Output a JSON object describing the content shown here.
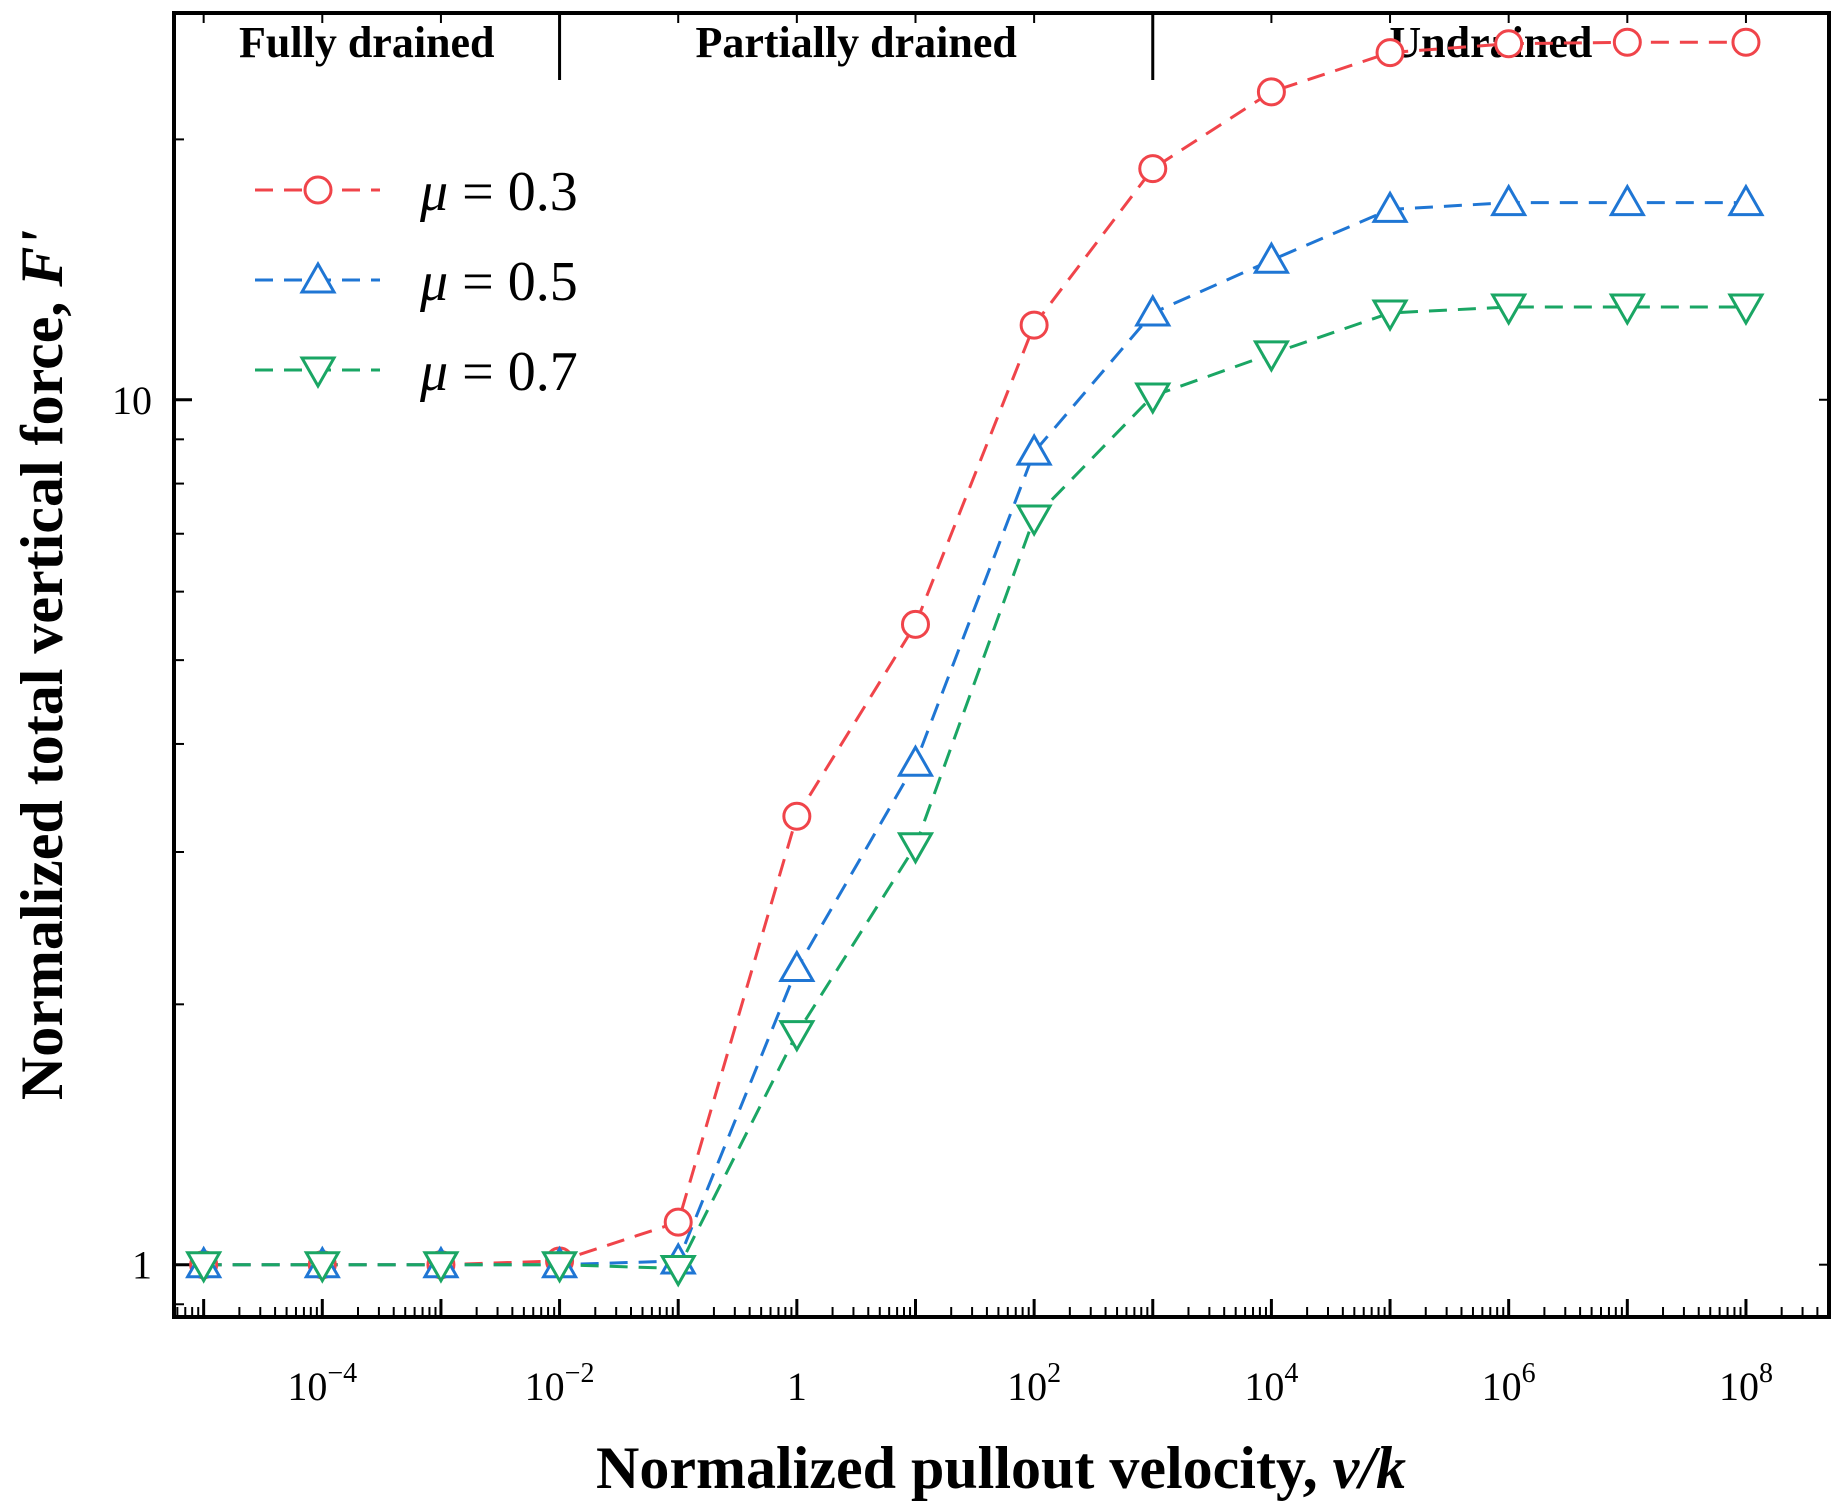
{
  "chart_data": {
    "type": "line",
    "title": "",
    "xlabel": "Normalized pullout velocity, ",
    "xlabel_italic": "v/k",
    "ylabel": "Normalized total vertical force, ",
    "ylabel_italic": "F'",
    "xscale": "log10",
    "yscale": "log10",
    "xlim_exponent": [
      -5.25,
      8.7
    ],
    "ylim": [
      0.87,
      28.0
    ],
    "x_exponents": [
      -5,
      -4,
      -3,
      -2,
      -1,
      0,
      1,
      2,
      3,
      4,
      5,
      6,
      7,
      8
    ],
    "x_tick_labels": [
      {
        "exp": -4,
        "base": "10",
        "sup": "−4"
      },
      {
        "exp": -2,
        "base": "10",
        "sup": "−2"
      },
      {
        "exp": 0,
        "base": "1",
        "sup": ""
      },
      {
        "exp": 2,
        "base": "10",
        "sup": "2"
      },
      {
        "exp": 4,
        "base": "10",
        "sup": "4"
      },
      {
        "exp": 6,
        "base": "10",
        "sup": "6"
      },
      {
        "exp": 8,
        "base": "10",
        "sup": "8"
      }
    ],
    "y_tick_labels": [
      {
        "value": 1,
        "label": "1"
      },
      {
        "value": 10,
        "label": "10"
      }
    ],
    "regions": [
      {
        "label": "Fully drained",
        "from_exp": -5.25,
        "to_exp": -2
      },
      {
        "label": "Partially drained",
        "from_exp": -2,
        "to_exp": 3
      },
      {
        "label": "Undrained",
        "from_exp": 3,
        "to_exp": 8.7
      }
    ],
    "series": [
      {
        "name_symbol": "μ",
        "name_value": " = 0.3",
        "color": "#f0444a",
        "marker": "circle",
        "values": [
          1.0,
          1.0,
          1.0,
          1.01,
          1.12,
          3.3,
          5.5,
          12.2,
          18.5,
          22.7,
          25.2,
          25.8,
          25.9,
          25.9
        ]
      },
      {
        "name_symbol": "μ",
        "name_value": " = 0.5",
        "color": "#1f76d4",
        "marker": "triangle-up",
        "values": [
          1.0,
          1.0,
          1.0,
          1.0,
          1.01,
          2.2,
          3.8,
          8.7,
          12.6,
          14.5,
          16.6,
          16.9,
          16.9,
          16.9
        ]
      },
      {
        "name_symbol": "μ",
        "name_value": " = 0.7",
        "color": "#1aa664",
        "marker": "triangle-down",
        "values": [
          1.0,
          1.0,
          1.0,
          1.0,
          0.99,
          1.85,
          3.05,
          7.3,
          10.1,
          11.3,
          12.6,
          12.8,
          12.8,
          12.8
        ]
      }
    ],
    "grid": false,
    "legend_position": "top-left"
  }
}
